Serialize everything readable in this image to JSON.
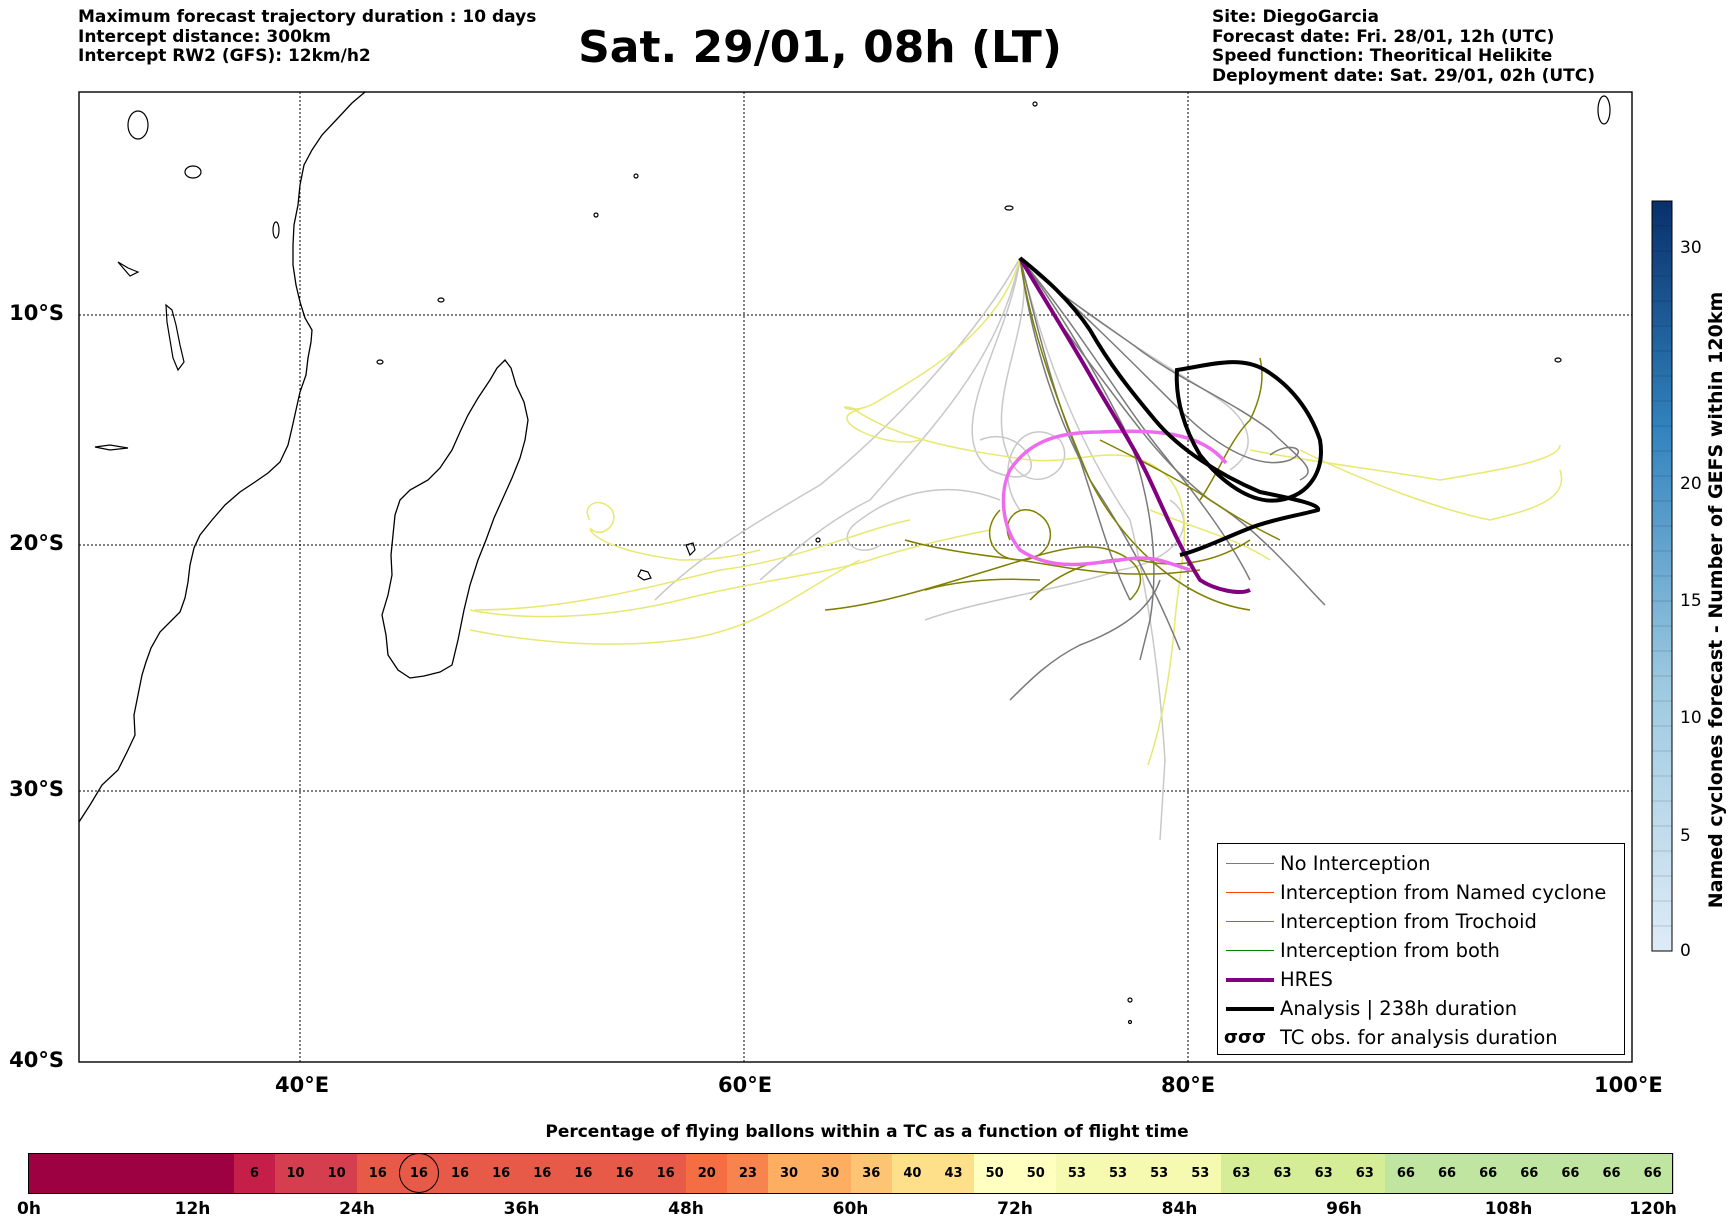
{
  "header": {
    "left": [
      "Maximum forecast trajectory duration : 10 days",
      "Intercept distance: 300km",
      "Intercept RW2 (GFS):  12km/h2"
    ],
    "title": "Sat. 29/01, 08h (LT)",
    "right": [
      "Site: DiegoGarcia",
      "Forecast date: Fri. 28/01, 12h (UTC)",
      "Speed function: Theoritical Helikite",
      "Deployment date: Sat. 29/01, 02h (UTC)"
    ]
  },
  "map": {
    "lon_ticks": [
      "40°E",
      "60°E",
      "80°E",
      "100°E"
    ],
    "lat_ticks": [
      "10°S",
      "20°S",
      "30°S",
      "40°S"
    ],
    "colors": {
      "no_interception": "#7a7a7a",
      "no_interception_light": "#c8c8c8",
      "named_cyclone": "#ff4500",
      "trochoid": "#808000",
      "trochoid_light": "#e8e870",
      "both": "#008000",
      "hres": "#800080",
      "hres_light": "#ee6aee",
      "analysis": "#000000"
    }
  },
  "legend": {
    "items": [
      {
        "label": "No Interception",
        "color": "#7a7a7a",
        "width": 1.5
      },
      {
        "label": "Interception from Named cyclone",
        "color": "#ff4500",
        "width": 1.5
      },
      {
        "label": "Interception from Trochoid",
        "color": "#808000",
        "width": 1.5
      },
      {
        "label": "Interception from both",
        "color": "#008000",
        "width": 1.5
      },
      {
        "label": "HRES",
        "color": "#800080",
        "width": 4
      },
      {
        "label": "Analysis | 238h duration",
        "color": "#000000",
        "width": 4
      }
    ],
    "tc_symbol": "σσσ",
    "tc_label": "TC obs. for analysis duration"
  },
  "colorbar": {
    "title": "Named cyclones forecast - Number of GEFS within 120km",
    "ticks": [
      "0",
      "5",
      "10",
      "15",
      "20",
      "30"
    ],
    "colors": [
      "#deebf7",
      "#08306b"
    ]
  },
  "bottom": {
    "title": "Percentage of flying ballons within a TC as a function of flight time",
    "cells": [
      null,
      null,
      null,
      null,
      null,
      "6",
      "10",
      "10",
      "16",
      "16",
      "16",
      "16",
      "16",
      "16",
      "16",
      "16",
      "20",
      "23",
      "30",
      "30",
      "36",
      "40",
      "43",
      "50",
      "50",
      "53",
      "53",
      "53",
      "53",
      "63",
      "63",
      "63",
      "63",
      "66",
      "66",
      "66",
      "66",
      "66",
      "66",
      "66"
    ],
    "hour_labels": [
      "0h",
      "12h",
      "24h",
      "36h",
      "48h",
      "60h",
      "72h",
      "84h",
      "96h",
      "108h",
      "120h"
    ]
  }
}
